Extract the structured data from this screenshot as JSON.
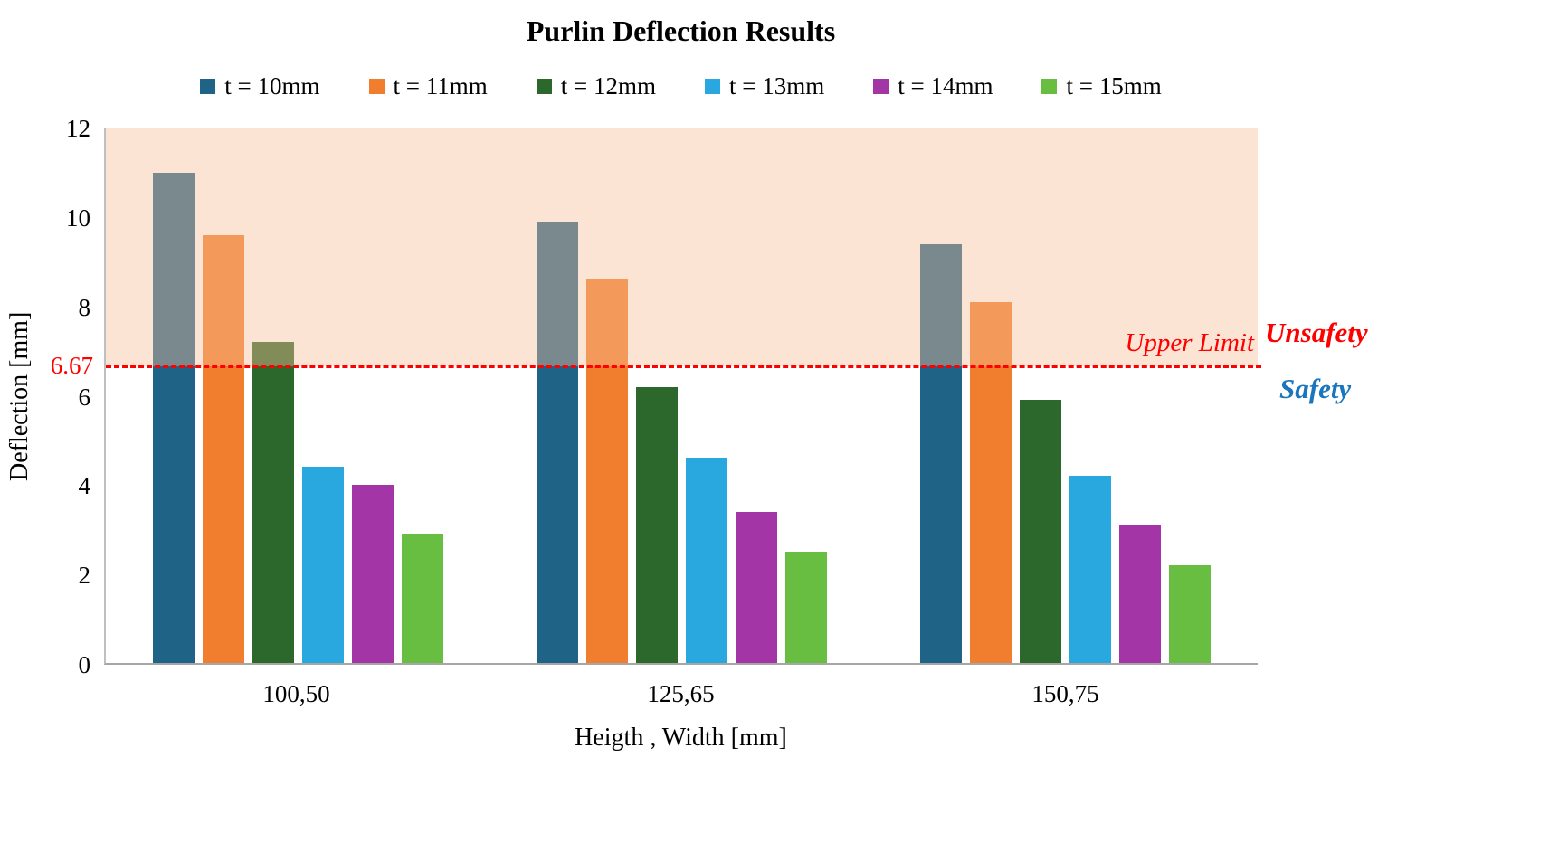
{
  "chart_data": {
    "type": "bar",
    "title": "Purlin Deflection Results",
    "xlabel": "Heigth , Width [mm]",
    "ylabel": "Deflection [mm]",
    "ylim": [
      0,
      12
    ],
    "yticks": [
      0,
      2,
      4,
      6,
      8,
      10,
      12
    ],
    "categories": [
      "100,50",
      "125,65",
      "150,75"
    ],
    "series": [
      {
        "name": "t = 10mm",
        "color": "#1F6387",
        "values": [
          11.0,
          9.9,
          9.4
        ]
      },
      {
        "name": "t = 11mm",
        "color": "#F07E2E",
        "values": [
          9.6,
          8.6,
          8.1
        ]
      },
      {
        "name": "t = 12mm",
        "color": "#2C682C",
        "values": [
          7.2,
          6.2,
          5.9
        ]
      },
      {
        "name": "t = 13mm",
        "color": "#29A8E0",
        "values": [
          4.4,
          4.6,
          4.2
        ]
      },
      {
        "name": "t = 14mm",
        "color": "#A335A6",
        "values": [
          4.0,
          3.4,
          3.1
        ]
      },
      {
        "name": "t = 15mm",
        "color": "#68BE41",
        "values": [
          2.9,
          2.5,
          2.2
        ]
      }
    ],
    "limit_line": {
      "value": 6.67,
      "label": "6.67",
      "annotation": "Upper Limit",
      "color": "#FF0000"
    },
    "regions": {
      "above_label": "Unsafety",
      "above_color": "#FF0000",
      "below_label": "Safety",
      "below_color": "#1B75BC",
      "shade_color": "#FBE4D4"
    },
    "legend_position": "top",
    "grid": false
  }
}
